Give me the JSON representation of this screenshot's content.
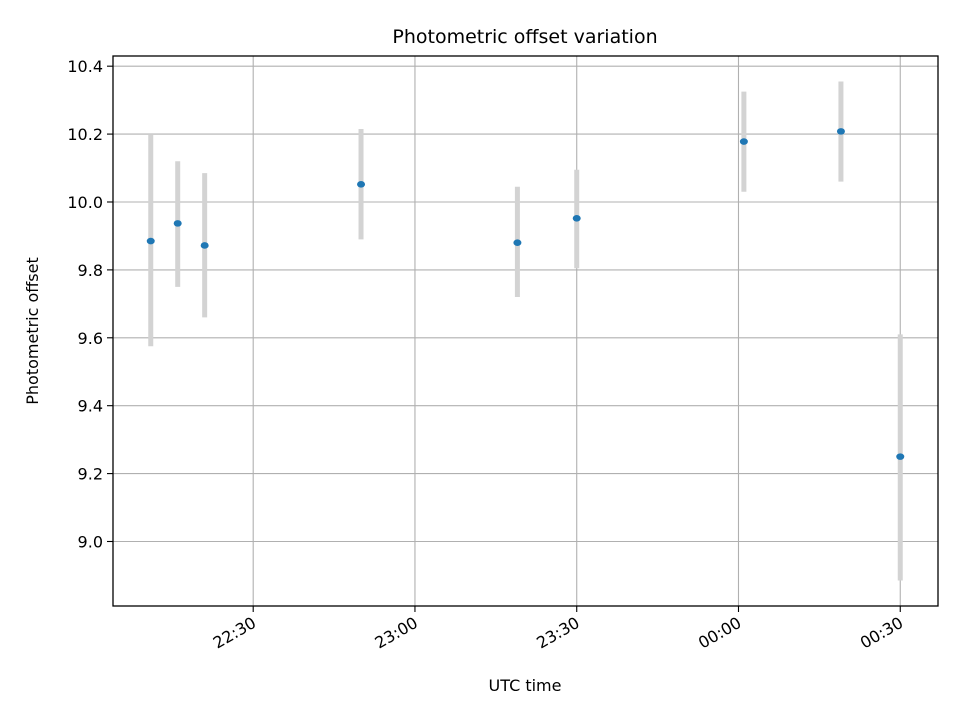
{
  "chart_data": {
    "type": "scatter",
    "title": "Photometric offset variation",
    "xlabel": "UTC time",
    "ylabel": "Photometric offset",
    "xlim": [
      "22:04",
      "00:37"
    ],
    "ylim": [
      8.81,
      10.43
    ],
    "grid": true,
    "xticks": [
      {
        "value": "22:30",
        "label": "22:30"
      },
      {
        "value": "23:00",
        "label": "23:00"
      },
      {
        "value": "23:30",
        "label": "23:30"
      },
      {
        "value": "00:00",
        "label": "00:00"
      },
      {
        "value": "00:30",
        "label": "00:30"
      }
    ],
    "yticks": [
      9.0,
      9.2,
      9.4,
      9.6,
      9.8,
      10.0,
      10.2,
      10.4
    ],
    "ytick_labels": [
      "9.0",
      "9.2",
      "9.4",
      "9.6",
      "9.8",
      "10.0",
      "10.2",
      "10.4"
    ],
    "points": [
      {
        "x": "22:11",
        "y": 9.885,
        "yerr_low": 9.575,
        "yerr_high": 10.2
      },
      {
        "x": "22:16",
        "y": 9.937,
        "yerr_low": 9.75,
        "yerr_high": 10.12
      },
      {
        "x": "22:21",
        "y": 9.872,
        "yerr_low": 9.66,
        "yerr_high": 10.085
      },
      {
        "x": "22:50",
        "y": 10.052,
        "yerr_low": 9.89,
        "yerr_high": 10.215
      },
      {
        "x": "23:19",
        "y": 9.88,
        "yerr_low": 9.72,
        "yerr_high": 10.045
      },
      {
        "x": "23:30",
        "y": 9.952,
        "yerr_low": 9.805,
        "yerr_high": 10.095
      },
      {
        "x": "00:01",
        "y": 10.178,
        "yerr_low": 10.03,
        "yerr_high": 10.325
      },
      {
        "x": "00:19",
        "y": 10.208,
        "yerr_low": 10.06,
        "yerr_high": 10.355
      },
      {
        "x": "00:30",
        "y": 9.25,
        "yerr_low": 8.885,
        "yerr_high": 9.61
      }
    ],
    "colors": {
      "point": "#1f77b4",
      "errorbar": "#d3d3d3",
      "grid": "#b0b0b0",
      "axes": "#000000"
    }
  }
}
